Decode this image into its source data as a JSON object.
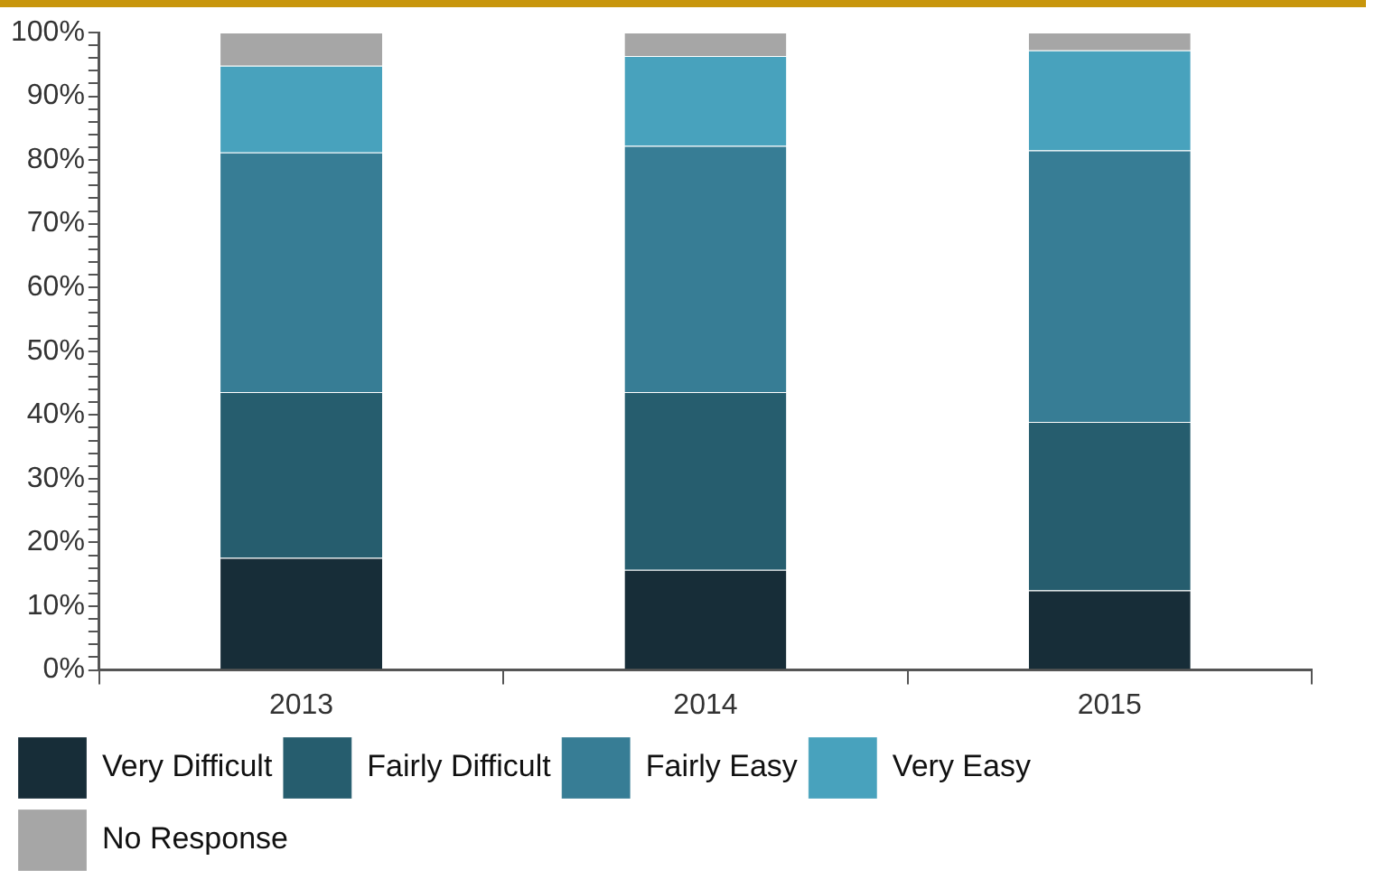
{
  "chart_data": {
    "type": "bar",
    "stacked": true,
    "categories": [
      "2013",
      "2014",
      "2015"
    ],
    "series": [
      {
        "name": "Very Difficult",
        "color": "#172d38",
        "values": [
          17.6,
          15.7,
          12.5
        ]
      },
      {
        "name": "Fairly Difficult",
        "color": "#265d6e",
        "values": [
          26.0,
          27.9,
          26.4
        ]
      },
      {
        "name": "Fairly Easy",
        "color": "#377d95",
        "values": [
          37.6,
          38.6,
          42.6
        ]
      },
      {
        "name": "Very Easy",
        "color": "#48a2bd",
        "values": [
          13.6,
          14.1,
          15.7
        ]
      },
      {
        "name": "No Response",
        "color": "#a6a6a6",
        "values": [
          5.2,
          3.7,
          2.8
        ]
      }
    ],
    "ylim": [
      0,
      100
    ],
    "yticks": [
      {
        "value": 0,
        "label": "0%"
      },
      {
        "value": 2,
        "label": null
      },
      {
        "value": 4,
        "label": null
      },
      {
        "value": 6,
        "label": null
      },
      {
        "value": 8,
        "label": null
      },
      {
        "value": 10,
        "label": "10%"
      },
      {
        "value": 12,
        "label": null
      },
      {
        "value": 14,
        "label": null
      },
      {
        "value": 16,
        "label": null
      },
      {
        "value": 18,
        "label": null
      },
      {
        "value": 20,
        "label": "20%"
      },
      {
        "value": 22,
        "label": null
      },
      {
        "value": 24,
        "label": null
      },
      {
        "value": 26,
        "label": null
      },
      {
        "value": 28,
        "label": null
      },
      {
        "value": 30,
        "label": "30%"
      },
      {
        "value": 32,
        "label": null
      },
      {
        "value": 34,
        "label": null
      },
      {
        "value": 36,
        "label": null
      },
      {
        "value": 38,
        "label": null
      },
      {
        "value": 40,
        "label": "40%"
      },
      {
        "value": 42,
        "label": null
      },
      {
        "value": 44,
        "label": null
      },
      {
        "value": 46,
        "label": null
      },
      {
        "value": 48,
        "label": null
      },
      {
        "value": 50,
        "label": "50%"
      },
      {
        "value": 52,
        "label": null
      },
      {
        "value": 54,
        "label": null
      },
      {
        "value": 56,
        "label": null
      },
      {
        "value": 58,
        "label": null
      },
      {
        "value": 60,
        "label": "60%"
      },
      {
        "value": 62,
        "label": null
      },
      {
        "value": 64,
        "label": null
      },
      {
        "value": 66,
        "label": null
      },
      {
        "value": 68,
        "label": null
      },
      {
        "value": 70,
        "label": "70%"
      },
      {
        "value": 72,
        "label": null
      },
      {
        "value": 74,
        "label": null
      },
      {
        "value": 76,
        "label": null
      },
      {
        "value": 78,
        "label": null
      },
      {
        "value": 80,
        "label": "80%"
      },
      {
        "value": 82,
        "label": null
      },
      {
        "value": 84,
        "label": null
      },
      {
        "value": 86,
        "label": null
      },
      {
        "value": 88,
        "label": null
      },
      {
        "value": 90,
        "label": "90%"
      },
      {
        "value": 92,
        "label": null
      },
      {
        "value": 94,
        "label": null
      },
      {
        "value": 96,
        "label": null
      },
      {
        "value": 98,
        "label": null
      },
      {
        "value": 100,
        "label": "100%"
      }
    ],
    "grid": false,
    "legend": "bottom"
  }
}
